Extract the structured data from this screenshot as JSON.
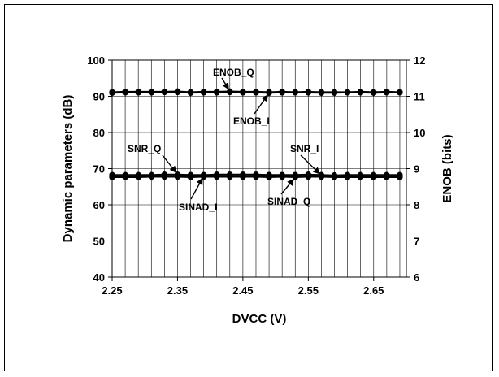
{
  "chart_data": {
    "type": "line",
    "xlabel": "DVCC (V)",
    "ylabel": "Dynamic parameters (dB)",
    "y2label": "ENOB (bits)",
    "xlim": [
      2.25,
      2.7
    ],
    "ylim": [
      40,
      100
    ],
    "y2lim": [
      6,
      12
    ],
    "xticks": [
      "2.25",
      "2.35",
      "2.45",
      "2.55",
      "2.65"
    ],
    "yticks": [
      "40",
      "50",
      "60",
      "70",
      "80",
      "90",
      "100"
    ],
    "y2ticks": [
      "6",
      "7",
      "8",
      "9",
      "10",
      "11",
      "12"
    ],
    "grid": true,
    "x": [
      2.25,
      2.27,
      2.29,
      2.31,
      2.33,
      2.35,
      2.37,
      2.39,
      2.41,
      2.43,
      2.45,
      2.47,
      2.49,
      2.51,
      2.53,
      2.55,
      2.57,
      2.59,
      2.61,
      2.63,
      2.65,
      2.67,
      2.69
    ],
    "series": [
      {
        "name": "SNR_Q",
        "axis": "left",
        "values": [
          68.3,
          68.3,
          68.3,
          68.3,
          68.4,
          68.4,
          68.3,
          68.3,
          68.4,
          68.4,
          68.4,
          68.4,
          68.3,
          68.3,
          68.3,
          68.4,
          68.3,
          68.2,
          68.3,
          68.3,
          68.3,
          68.3,
          68.3
        ]
      },
      {
        "name": "SNR_I",
        "axis": "left",
        "values": [
          68.0,
          68.0,
          68.0,
          68.1,
          68.1,
          68.1,
          68.0,
          68.1,
          68.1,
          68.1,
          68.1,
          68.1,
          68.1,
          68.1,
          68.0,
          68.1,
          68.1,
          68.0,
          68.0,
          68.0,
          68.0,
          68.0,
          68.0
        ]
      },
      {
        "name": "SINAD_I",
        "axis": "left",
        "values": [
          67.8,
          67.8,
          67.9,
          67.9,
          67.9,
          67.9,
          67.8,
          67.9,
          67.9,
          67.9,
          67.9,
          67.9,
          67.8,
          67.9,
          67.8,
          67.9,
          67.9,
          67.8,
          67.8,
          67.8,
          67.8,
          67.8,
          67.8
        ]
      },
      {
        "name": "SINAD_Q",
        "axis": "left",
        "values": [
          67.6,
          67.6,
          67.6,
          67.7,
          67.7,
          67.7,
          67.6,
          67.7,
          67.7,
          67.7,
          67.7,
          67.7,
          67.6,
          67.7,
          67.6,
          67.7,
          67.7,
          67.6,
          67.6,
          67.6,
          67.6,
          67.6,
          67.6
        ]
      },
      {
        "name": "ENOB_Q",
        "axis": "right",
        "values": [
          11.12,
          11.13,
          11.13,
          11.13,
          11.13,
          11.14,
          11.12,
          11.13,
          11.13,
          11.14,
          11.13,
          11.13,
          11.12,
          11.13,
          11.12,
          11.13,
          11.12,
          11.12,
          11.12,
          11.13,
          11.12,
          11.13,
          11.12
        ]
      },
      {
        "name": "ENOB_I",
        "axis": "right",
        "values": [
          11.09,
          11.1,
          11.1,
          11.1,
          11.11,
          11.11,
          11.09,
          11.1,
          11.1,
          11.11,
          11.1,
          11.1,
          11.09,
          11.1,
          11.1,
          11.1,
          11.09,
          11.09,
          11.1,
          11.1,
          11.09,
          11.1,
          11.1
        ]
      }
    ],
    "annotations": [
      {
        "text": "ENOB_Q",
        "series": "ENOB_Q",
        "x": 2.43
      },
      {
        "text": "ENOB_I",
        "series": "ENOB_I",
        "x": 2.49
      },
      {
        "text": "SNR_Q",
        "series": "SNR_Q",
        "x": 2.35
      },
      {
        "text": "SNR_I",
        "series": "SNR_I",
        "x": 2.56
      },
      {
        "text": "SINAD_I",
        "series": "SINAD_I",
        "x": 2.39
      },
      {
        "text": "SINAD_Q",
        "series": "SINAD_Q",
        "x": 2.52
      }
    ]
  }
}
